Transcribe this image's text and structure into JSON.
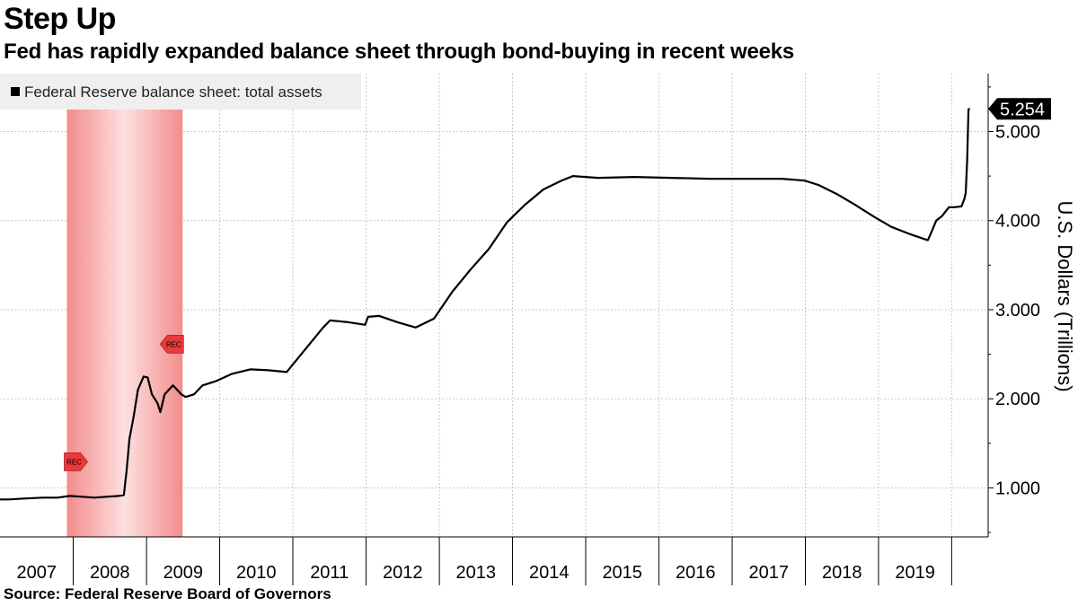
{
  "title": "Step Up",
  "subtitle": "Fed has rapidly expanded balance sheet through bond-buying in recent weeks",
  "source": "Source: Federal Reserve Board of Governors",
  "chart_data": {
    "type": "line",
    "series": [
      {
        "name": "Federal Reserve balance sheet: total assets",
        "color": "#000000",
        "points": [
          [
            "2006-12-15",
            0.87
          ],
          [
            "2007-02-15",
            0.87
          ],
          [
            "2007-05-01",
            0.88
          ],
          [
            "2007-08-01",
            0.89
          ],
          [
            "2007-10-15",
            0.89
          ],
          [
            "2007-12-15",
            0.91
          ],
          [
            "2008-02-15",
            0.9
          ],
          [
            "2008-04-15",
            0.89
          ],
          [
            "2008-06-15",
            0.9
          ],
          [
            "2008-08-15",
            0.91
          ],
          [
            "2008-09-10",
            0.92
          ],
          [
            "2008-09-24",
            1.2
          ],
          [
            "2008-10-08",
            1.55
          ],
          [
            "2008-10-29",
            1.8
          ],
          [
            "2008-11-19",
            2.1
          ],
          [
            "2008-12-17",
            2.25
          ],
          [
            "2009-01-07",
            2.24
          ],
          [
            "2009-01-28",
            2.05
          ],
          [
            "2009-02-25",
            1.95
          ],
          [
            "2009-03-11",
            1.85
          ],
          [
            "2009-04-01",
            2.05
          ],
          [
            "2009-04-22",
            2.1
          ],
          [
            "2009-05-13",
            2.15
          ],
          [
            "2009-06-03",
            2.1
          ],
          [
            "2009-06-24",
            2.05
          ],
          [
            "2009-07-15",
            2.02
          ],
          [
            "2009-08-26",
            2.05
          ],
          [
            "2009-10-07",
            2.15
          ],
          [
            "2009-12-16",
            2.2
          ],
          [
            "2010-03-03",
            2.28
          ],
          [
            "2010-06-02",
            2.33
          ],
          [
            "2010-09-01",
            2.32
          ],
          [
            "2010-12-01",
            2.3
          ],
          [
            "2011-03-02",
            2.55
          ],
          [
            "2011-06-01",
            2.8
          ],
          [
            "2011-07-06",
            2.88
          ],
          [
            "2011-10-05",
            2.86
          ],
          [
            "2011-12-28",
            2.83
          ],
          [
            "2012-01-11",
            2.92
          ],
          [
            "2012-03-07",
            2.93
          ],
          [
            "2012-06-06",
            2.86
          ],
          [
            "2012-09-05",
            2.8
          ],
          [
            "2012-12-05",
            2.9
          ],
          [
            "2013-03-06",
            3.2
          ],
          [
            "2013-06-05",
            3.45
          ],
          [
            "2013-09-04",
            3.68
          ],
          [
            "2013-12-04",
            3.98
          ],
          [
            "2014-03-05",
            4.18
          ],
          [
            "2014-06-04",
            4.35
          ],
          [
            "2014-09-03",
            4.45
          ],
          [
            "2014-10-29",
            4.5
          ],
          [
            "2015-03-04",
            4.48
          ],
          [
            "2015-09-02",
            4.49
          ],
          [
            "2016-03-02",
            4.48
          ],
          [
            "2016-09-07",
            4.47
          ],
          [
            "2017-03-01",
            4.47
          ],
          [
            "2017-09-06",
            4.47
          ],
          [
            "2017-12-27",
            4.45
          ],
          [
            "2018-03-07",
            4.4
          ],
          [
            "2018-06-06",
            4.3
          ],
          [
            "2018-09-05",
            4.18
          ],
          [
            "2018-12-05",
            4.05
          ],
          [
            "2019-03-06",
            3.93
          ],
          [
            "2019-06-05",
            3.85
          ],
          [
            "2019-09-04",
            3.78
          ],
          [
            "2019-09-18",
            3.85
          ],
          [
            "2019-10-16",
            4.0
          ],
          [
            "2019-11-13",
            4.05
          ],
          [
            "2019-12-18",
            4.15
          ],
          [
            "2020-01-15",
            4.15
          ],
          [
            "2020-02-19",
            4.16
          ],
          [
            "2020-03-04",
            4.24
          ],
          [
            "2020-03-11",
            4.31
          ],
          [
            "2020-03-18",
            4.67
          ],
          [
            "2020-03-25",
            5.25
          ],
          [
            "2020-04-01",
            5.254
          ]
        ]
      }
    ],
    "last_value_label": "5.254",
    "xlim": [
      "2007-01-01",
      "2020-07-01"
    ],
    "x_tick_labels": [
      "2007",
      "2008",
      "2009",
      "2010",
      "2011",
      "2012",
      "2013",
      "2014",
      "2015",
      "2016",
      "2017",
      "2018",
      "2019"
    ],
    "ylim": [
      0.45,
      5.65
    ],
    "y_ticks": [
      1.0,
      2.0,
      3.0,
      4.0,
      5.0
    ],
    "y_tick_labels": [
      "1.000",
      "2.000",
      "3.000",
      "4.000",
      "5.000"
    ],
    "ylabel": "U.S. Dollars (Trillions)",
    "recession": {
      "start": "2007-12-01",
      "end": "2009-06-30",
      "label": "REC",
      "color": "#f7a8a8"
    },
    "grid": true,
    "legend_position": "top-left",
    "y_axis_position": "right"
  }
}
